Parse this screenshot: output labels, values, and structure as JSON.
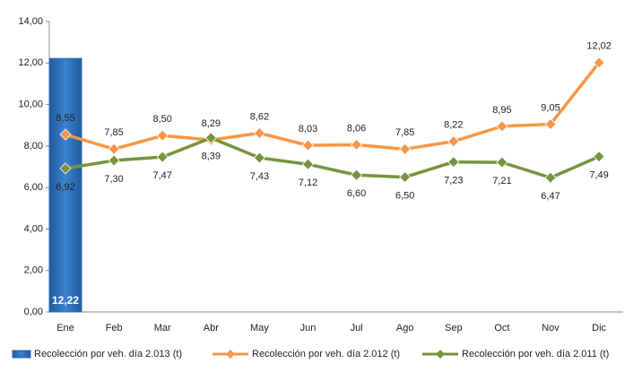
{
  "chart_data": {
    "type": "combo",
    "categories": [
      "Ene",
      "Feb",
      "Mar",
      "Abr",
      "May",
      "Jun",
      "Jul",
      "Ago",
      "Sep",
      "Oct",
      "Nov",
      "Dic"
    ],
    "series": [
      {
        "name": "Recolección por veh. día 2.013 (t)",
        "type": "bar",
        "color": "#2e6db4",
        "values": [
          12.22,
          null,
          null,
          null,
          null,
          null,
          null,
          null,
          null,
          null,
          null,
          null
        ],
        "value_labels": [
          "12,22",
          null,
          null,
          null,
          null,
          null,
          null,
          null,
          null,
          null,
          null,
          null
        ]
      },
      {
        "name": "Recolección por veh. día 2.012 (t)",
        "type": "line",
        "color": "#f79646",
        "values": [
          8.55,
          7.85,
          8.5,
          8.29,
          8.62,
          8.03,
          8.06,
          7.85,
          8.22,
          8.95,
          9.05,
          12.02
        ],
        "value_labels": [
          "8,55",
          "7,85",
          "8,50",
          "8,29",
          "8,62",
          "8,03",
          "8,06",
          "7,85",
          "8,22",
          "8,95",
          "9,05",
          "12,02"
        ]
      },
      {
        "name": "Recolección por veh. día 2.011 (t)",
        "type": "line",
        "color": "#77933c",
        "values": [
          6.92,
          7.3,
          7.47,
          8.39,
          7.43,
          7.12,
          6.6,
          6.5,
          7.23,
          7.21,
          6.47,
          7.49
        ],
        "value_labels": [
          "6,92",
          "7,30",
          "7,47",
          "8,39",
          "7,43",
          "7,12",
          "6,60",
          "6,50",
          "7,23",
          "7,21",
          "6,47",
          "7,49"
        ]
      }
    ],
    "ylim": [
      0,
      14
    ],
    "yticks": [
      {
        "value": 0,
        "label": "0,00"
      },
      {
        "value": 2,
        "label": "2,00"
      },
      {
        "value": 4,
        "label": "4,00"
      },
      {
        "value": 6,
        "label": "6,00"
      },
      {
        "value": 8,
        "label": "8,00"
      },
      {
        "value": 10,
        "label": "10,00"
      },
      {
        "value": 12,
        "label": "12,00"
      },
      {
        "value": 14,
        "label": "14,00"
      }
    ],
    "grid": false,
    "legend": "bottom"
  }
}
